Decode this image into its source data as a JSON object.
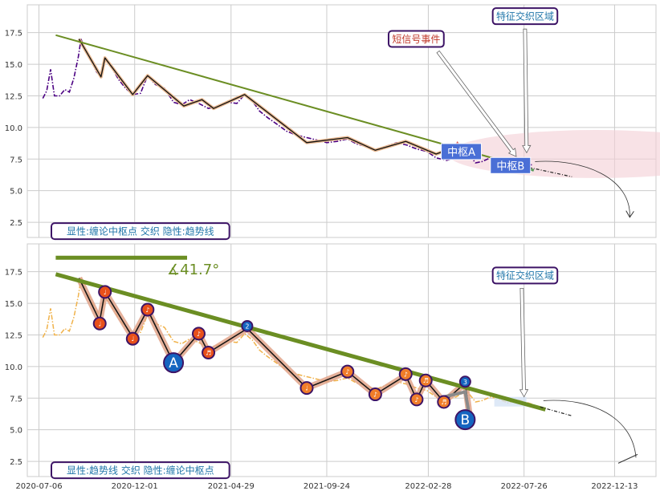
{
  "chart_data": [
    {
      "type": "line",
      "panel": "top",
      "x_range": [
        "2020-06-18",
        "2023-02-15"
      ],
      "ylim": [
        1.3,
        19.7
      ],
      "yticks": [
        2.5,
        5.0,
        7.5,
        10.0,
        12.5,
        15.0,
        17.5
      ],
      "ytick_labels": [
        "2.5",
        "5.0",
        "7.5",
        "10.0",
        "12.5",
        "15.0",
        "17.5"
      ],
      "grid": true,
      "price_series": [
        [
          "2020-07-12",
          12.3
        ],
        [
          "2020-07-18",
          12.9
        ],
        [
          "2020-07-24",
          14.6
        ],
        [
          "2020-07-30",
          12.5
        ],
        [
          "2020-08-07",
          12.5
        ],
        [
          "2020-08-15",
          13.0
        ],
        [
          "2020-08-22",
          12.8
        ],
        [
          "2020-08-29",
          13.9
        ],
        [
          "2020-09-05",
          15.6
        ],
        [
          "2020-09-09",
          17.0
        ],
        [
          "2020-09-16",
          16.0
        ],
        [
          "2020-09-24",
          15.4
        ],
        [
          "2020-10-03",
          14.4
        ],
        [
          "2020-10-10",
          14.0
        ],
        [
          "2020-10-16",
          15.5
        ],
        [
          "2020-10-26",
          14.8
        ],
        [
          "2020-11-06",
          13.8
        ],
        [
          "2020-11-17",
          13.1
        ],
        [
          "2020-11-28",
          12.6
        ],
        [
          "2020-12-10",
          12.7
        ],
        [
          "2020-12-21",
          14.1
        ],
        [
          "2021-01-02",
          13.4
        ],
        [
          "2021-01-16",
          13.1
        ],
        [
          "2021-01-30",
          12.0
        ],
        [
          "2021-02-12",
          11.8
        ],
        [
          "2021-02-24",
          12.2
        ],
        [
          "2021-03-10",
          11.9
        ],
        [
          "2021-03-25",
          11.5
        ],
        [
          "2021-04-09",
          11.7
        ],
        [
          "2021-04-24",
          12.0
        ],
        [
          "2021-05-08",
          11.9
        ],
        [
          "2021-05-20",
          12.6
        ],
        [
          "2021-06-01",
          12.1
        ],
        [
          "2021-06-12",
          11.3
        ],
        [
          "2021-06-24",
          10.8
        ],
        [
          "2021-07-08",
          10.3
        ],
        [
          "2021-07-24",
          9.7
        ],
        [
          "2021-08-08",
          9.4
        ],
        [
          "2021-08-24",
          9.2
        ],
        [
          "2021-09-09",
          9.0
        ],
        [
          "2021-09-24",
          8.8
        ],
        [
          "2021-10-10",
          8.9
        ],
        [
          "2021-10-26",
          9.1
        ],
        [
          "2021-11-09",
          8.7
        ],
        [
          "2021-11-24",
          8.5
        ],
        [
          "2021-12-08",
          8.2
        ],
        [
          "2021-12-24",
          8.5
        ],
        [
          "2022-01-10",
          8.8
        ],
        [
          "2022-01-26",
          8.6
        ],
        [
          "2022-02-10",
          8.3
        ],
        [
          "2022-02-26",
          8.1
        ],
        [
          "2022-03-12",
          7.6
        ],
        [
          "2022-03-28",
          7.4
        ],
        [
          "2022-04-12",
          7.6
        ],
        [
          "2022-04-28",
          8.1
        ],
        [
          "2022-05-12",
          7.2
        ],
        [
          "2022-05-22",
          7.3
        ],
        [
          "2022-06-04",
          7.6
        ],
        [
          "2022-06-18",
          7.4
        ],
        [
          "2022-07-02",
          7.1
        ],
        [
          "2022-07-16",
          7.4
        ],
        [
          "2022-07-28",
          7.2
        ],
        [
          "2022-08-09",
          7.0
        ]
      ],
      "bi_points": [
        [
          "2020-09-06",
          17.0
        ],
        [
          "2020-10-10",
          14.0
        ],
        [
          "2020-10-16",
          15.5
        ],
        [
          "2020-11-28",
          12.6
        ],
        [
          "2020-12-21",
          14.1
        ],
        [
          "2021-02-15",
          11.7
        ],
        [
          "2021-03-15",
          12.2
        ],
        [
          "2021-04-02",
          11.5
        ],
        [
          "2021-05-20",
          12.6
        ],
        [
          "2021-08-24",
          8.8
        ],
        [
          "2021-10-26",
          9.2
        ],
        [
          "2021-12-08",
          8.2
        ],
        [
          "2022-01-24",
          8.9
        ],
        [
          "2022-03-12",
          7.9
        ],
        [
          "2022-04-14",
          8.5
        ],
        [
          "2022-05-03",
          8.6
        ]
      ],
      "trend_line": [
        [
          "2020-08-01",
          17.3
        ],
        [
          "2022-06-20",
          7.4
        ]
      ],
      "projection_line": [
        [
          "2022-07-01",
          7.2
        ],
        [
          "2022-10-08",
          6.1
        ]
      ],
      "ellipse": {
        "center": [
          "2022-11-15",
          7.9
        ],
        "half_width_days": 230,
        "half_height": 1.9
      },
      "zhongshu": [
        {
          "label": "中枢A",
          "from": [
            "2022-03-20",
            7.9
          ],
          "to": [
            "2022-05-08",
            8.6
          ]
        },
        {
          "label": "中枢B",
          "from": [
            "2022-06-04",
            6.9
          ],
          "to": [
            "2022-07-28",
            7.5
          ]
        }
      ],
      "annotations": [
        {
          "text": "短信号事件",
          "at": [
            "2022-01-10",
            17.0
          ],
          "points_to": [
            "2022-07-14",
            7.7
          ]
        },
        {
          "text": "特征交织区域",
          "at": [
            "2022-06-20",
            18.8
          ],
          "points_to": [
            "2022-07-30",
            8.0
          ]
        }
      ],
      "legend_text": "显性:缠论中枢点 交织 隐性:趋势线"
    },
    {
      "type": "line",
      "panel": "bottom",
      "x_range": [
        "2020-06-18",
        "2023-02-15"
      ],
      "ylim": [
        1.3,
        19.7
      ],
      "yticks": [
        2.5,
        5.0,
        7.5,
        10.0,
        12.5,
        15.0,
        17.5
      ],
      "ytick_labels": [
        "2.5",
        "5.0",
        "7.5",
        "10.0",
        "12.5",
        "15.0",
        "17.5"
      ],
      "xticks": [
        "2020-07-06",
        "2020-12-01",
        "2021-04-29",
        "2021-09-24",
        "2022-02-28",
        "2022-07-26",
        "2022-12-13"
      ],
      "xtick_labels": [
        "2020-07-06",
        "2020-12-01",
        "2021-04-29",
        "2021-09-24",
        "2022-02-28",
        "2022-07-26",
        "2022-12-13"
      ],
      "grid": true,
      "angle_label": "∡41.7°",
      "trend_line": [
        [
          "2020-08-01",
          17.3
        ],
        [
          "2022-08-28",
          6.6
        ]
      ],
      "angle_bar": [
        [
          "2020-08-01",
          18.6
        ],
        [
          "2021-02-20",
          18.6
        ]
      ],
      "bi_points": [
        [
          "2020-09-06",
          17.0
        ],
        [
          "2020-10-08",
          13.6
        ],
        [
          "2020-10-16",
          15.9
        ],
        [
          "2020-11-28",
          12.3
        ],
        [
          "2020-12-21",
          14.5
        ],
        [
          "2021-01-30",
          10.3
        ],
        [
          "2021-03-10",
          12.6
        ],
        [
          "2021-03-25",
          11.1
        ],
        [
          "2021-05-24",
          13.0
        ],
        [
          "2021-08-24",
          8.3
        ],
        [
          "2021-10-26",
          9.6
        ],
        [
          "2021-12-08",
          7.8
        ],
        [
          "2022-01-24",
          9.3
        ],
        [
          "2022-02-10",
          7.4
        ],
        [
          "2022-02-24",
          8.9
        ],
        [
          "2022-03-24",
          7.2
        ],
        [
          "2022-04-26",
          8.7
        ],
        [
          "2022-05-03",
          6.0
        ]
      ],
      "markers": [
        {
          "label": "♩",
          "at": [
            "2020-10-08",
            13.4
          ],
          "color": "#e8501a"
        },
        {
          "label": "♩",
          "at": [
            "2020-10-16",
            15.9
          ],
          "color": "#e8501a"
        },
        {
          "label": "♩",
          "at": [
            "2020-11-28",
            12.2
          ],
          "color": "#e8501a"
        },
        {
          "label": "♪",
          "at": [
            "2020-12-21",
            14.5
          ],
          "color": "#e8501a"
        },
        {
          "label": "A",
          "at": [
            "2021-01-30",
            10.3
          ],
          "color": "#1565c0",
          "big": true
        },
        {
          "label": "♪",
          "at": [
            "2021-03-10",
            12.6
          ],
          "color": "#e8501a"
        },
        {
          "label": "♬",
          "at": [
            "2021-03-25",
            11.1
          ],
          "color": "#e8501a"
        },
        {
          "label": "2",
          "at": [
            "2021-05-24",
            13.2
          ],
          "color": "#1565c0"
        },
        {
          "label": "♩",
          "at": [
            "2021-08-24",
            8.3
          ],
          "color": "#f07d2a"
        },
        {
          "label": "♪",
          "at": [
            "2021-10-26",
            9.6
          ],
          "color": "#f07d2a"
        },
        {
          "label": "♪",
          "at": [
            "2021-12-08",
            7.8
          ],
          "color": "#f07d2a"
        },
        {
          "label": "♪",
          "at": [
            "2022-01-24",
            9.4
          ],
          "color": "#f07d2a"
        },
        {
          "label": "♪",
          "at": [
            "2022-02-10",
            7.4
          ],
          "color": "#f07d2a"
        },
        {
          "label": "♬",
          "at": [
            "2022-02-24",
            8.9
          ],
          "color": "#f07d2a"
        },
        {
          "label": "♬",
          "at": [
            "2022-03-24",
            7.2
          ],
          "color": "#f07d2a"
        },
        {
          "label": "3",
          "at": [
            "2022-04-26",
            8.8
          ],
          "color": "#1565c0"
        },
        {
          "label": "B",
          "at": [
            "2022-04-26",
            5.8
          ],
          "color": "#1565c0",
          "big": true
        }
      ],
      "projection_line": [
        [
          "2022-08-20",
          6.8
        ],
        [
          "2022-10-08",
          6.1
        ]
      ],
      "annotations": [
        {
          "text": "特征交织区域",
          "at": [
            "2022-06-20",
            17.2
          ],
          "points_to": [
            "2022-07-26",
            7.6
          ]
        }
      ],
      "legend_text": "显性:趋势线 交织 隐性:缠论中枢点"
    }
  ]
}
